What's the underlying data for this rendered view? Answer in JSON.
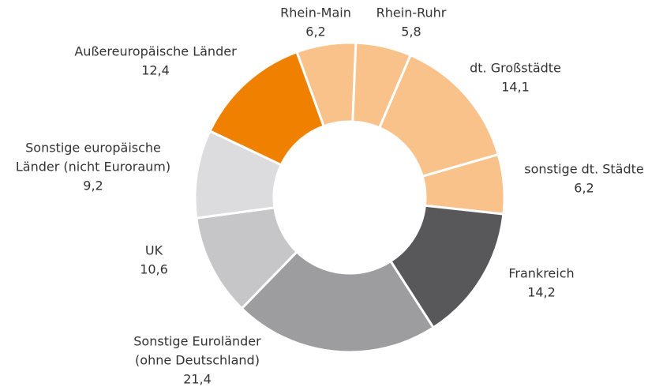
{
  "chart_data": {
    "type": "donut",
    "categories": [
      "Rhein-Main",
      "Rhein-Ruhr",
      "dt. Großstädte",
      "sonstige dt. Städte",
      "Frankreich",
      [
        "Sonstige Euroländer",
        "(ohne Deutschland)"
      ],
      "UK",
      [
        "Sonstige europäische",
        "Länder (nicht Euroraum)"
      ],
      "Außereuropäische Länder"
    ],
    "values": [
      6.2,
      5.8,
      14.1,
      6.2,
      14.2,
      21.4,
      10.6,
      9.2,
      12.4
    ],
    "value_labels": [
      "6,2",
      "5,8",
      "14,1",
      "6,2",
      "14,2",
      "21,4",
      "10,6",
      "9,2",
      "12,4"
    ],
    "colors": [
      "#f8c28a",
      "#f8c28a",
      "#f8c28a",
      "#f8c28a",
      "#58585a",
      "#9d9d9f",
      "#c6c6c8",
      "#dcdcde",
      "#f08100"
    ]
  }
}
